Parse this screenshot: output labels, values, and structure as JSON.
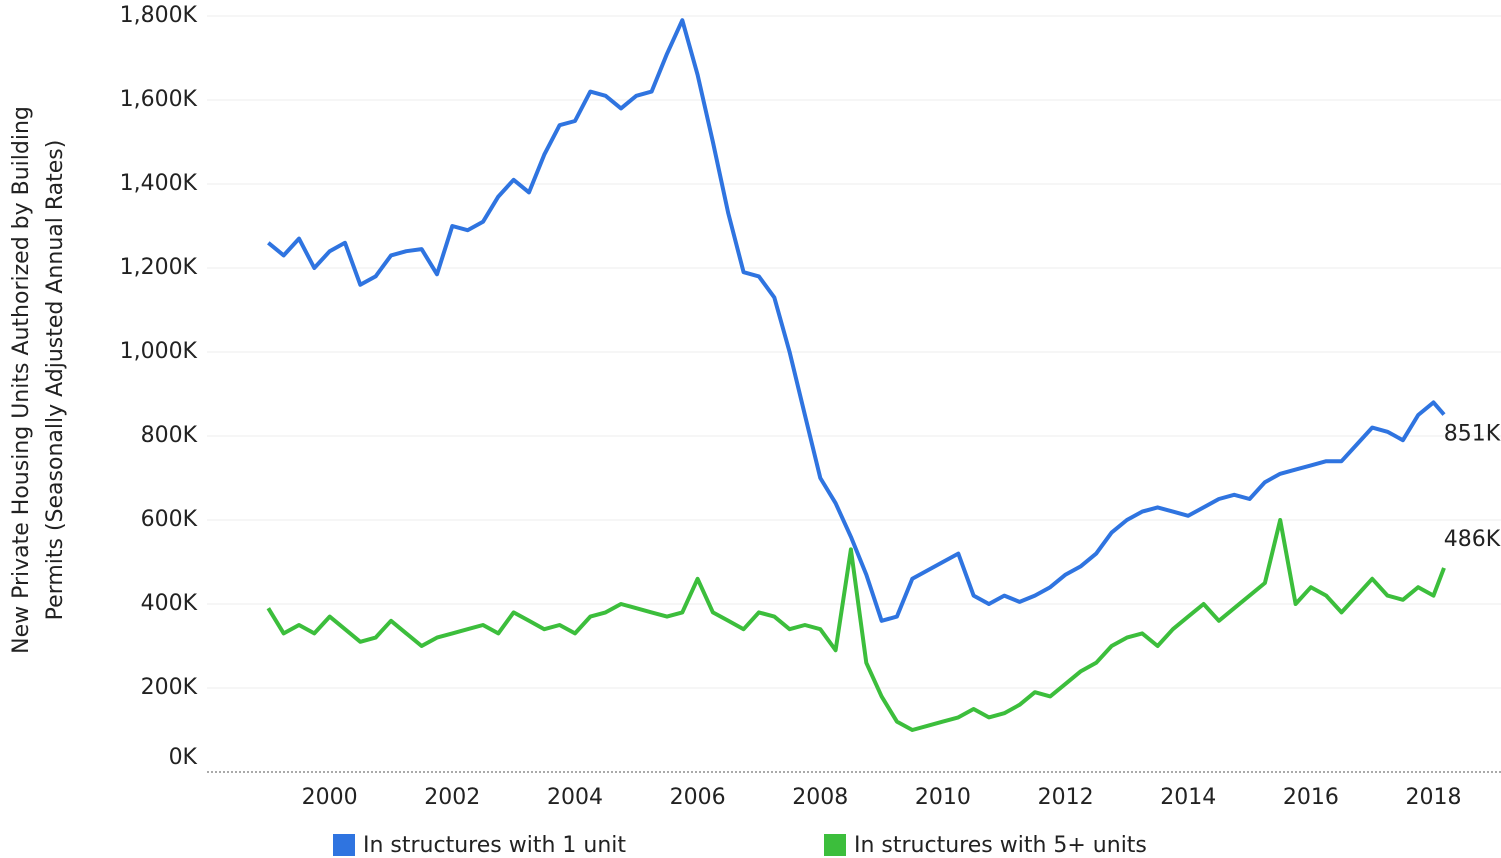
{
  "chart_data": {
    "type": "line",
    "ylabel": [
      "New Private Housing Units Authorized by Building",
      "Permits (Seasonally Adjusted Annual Rates)"
    ],
    "x": [
      1999,
      1999.25,
      1999.5,
      1999.75,
      2000,
      2000.25,
      2000.5,
      2000.75,
      2001,
      2001.25,
      2001.5,
      2001.75,
      2002,
      2002.25,
      2002.5,
      2002.75,
      2003,
      2003.25,
      2003.5,
      2003.75,
      2004,
      2004.25,
      2004.5,
      2004.75,
      2005,
      2005.25,
      2005.5,
      2005.75,
      2006,
      2006.25,
      2006.5,
      2006.75,
      2007,
      2007.25,
      2007.5,
      2007.75,
      2008,
      2008.25,
      2008.5,
      2008.75,
      2009,
      2009.25,
      2009.5,
      2009.75,
      2010,
      2010.25,
      2010.5,
      2010.75,
      2011,
      2011.25,
      2011.5,
      2011.75,
      2012,
      2012.25,
      2012.5,
      2012.75,
      2013,
      2013.25,
      2013.5,
      2013.75,
      2014,
      2014.25,
      2014.5,
      2014.75,
      2015,
      2015.25,
      2015.5,
      2015.75,
      2016,
      2016.25,
      2016.5,
      2016.75,
      2017,
      2017.25,
      2017.5,
      2017.75,
      2018,
      2018.17
    ],
    "series": [
      {
        "name": "In structures with 1 unit",
        "color": "#2f74e0",
        "end_label": "851K",
        "values": [
          1260,
          1230,
          1270,
          1200,
          1240,
          1260,
          1160,
          1180,
          1230,
          1240,
          1245,
          1185,
          1300,
          1290,
          1310,
          1370,
          1410,
          1380,
          1470,
          1540,
          1550,
          1620,
          1610,
          1580,
          1610,
          1620,
          1710,
          1790,
          1660,
          1500,
          1330,
          1190,
          1180,
          1130,
          1000,
          850,
          700,
          640,
          560,
          470,
          360,
          370,
          460,
          480,
          500,
          520,
          420,
          400,
          420,
          405,
          420,
          440,
          470,
          490,
          520,
          570,
          600,
          620,
          630,
          620,
          610,
          630,
          650,
          660,
          650,
          690,
          710,
          720,
          730,
          740,
          740,
          780,
          820,
          810,
          790,
          850,
          880,
          851
        ]
      },
      {
        "name": "In structures with 5+ units",
        "color": "#3cbe3c",
        "end_label": "486K",
        "values": [
          390,
          330,
          350,
          330,
          370,
          340,
          310,
          320,
          360,
          330,
          300,
          320,
          330,
          340,
          350,
          330,
          380,
          360,
          340,
          350,
          330,
          370,
          380,
          400,
          390,
          380,
          370,
          380,
          460,
          380,
          360,
          340,
          380,
          370,
          340,
          350,
          340,
          290,
          530,
          260,
          180,
          120,
          100,
          110,
          120,
          130,
          150,
          130,
          140,
          160,
          190,
          180,
          210,
          240,
          260,
          300,
          320,
          330,
          300,
          340,
          370,
          400,
          360,
          390,
          420,
          450,
          600,
          400,
          440,
          420,
          380,
          420,
          460,
          420,
          410,
          440,
          420,
          486
        ]
      }
    ],
    "xlim": [
      1998,
      2019.1
    ],
    "xticks": [
      2000,
      2002,
      2004,
      2006,
      2008,
      2010,
      2012,
      2014,
      2016,
      2018
    ],
    "ylim": [
      0,
      1800
    ],
    "yticks": [
      {
        "value": 0,
        "label": "0K"
      },
      {
        "value": 200,
        "label": "200K"
      },
      {
        "value": 400,
        "label": "400K"
      },
      {
        "value": 600,
        "label": "600K"
      },
      {
        "value": 800,
        "label": "800K"
      },
      {
        "value": 1000,
        "label": "1,000K"
      },
      {
        "value": 1200,
        "label": "1,200K"
      },
      {
        "value": 1400,
        "label": "1,400K"
      },
      {
        "value": 1600,
        "label": "1,600K"
      },
      {
        "value": 1800,
        "label": "1,800K"
      }
    ],
    "grid": true
  }
}
